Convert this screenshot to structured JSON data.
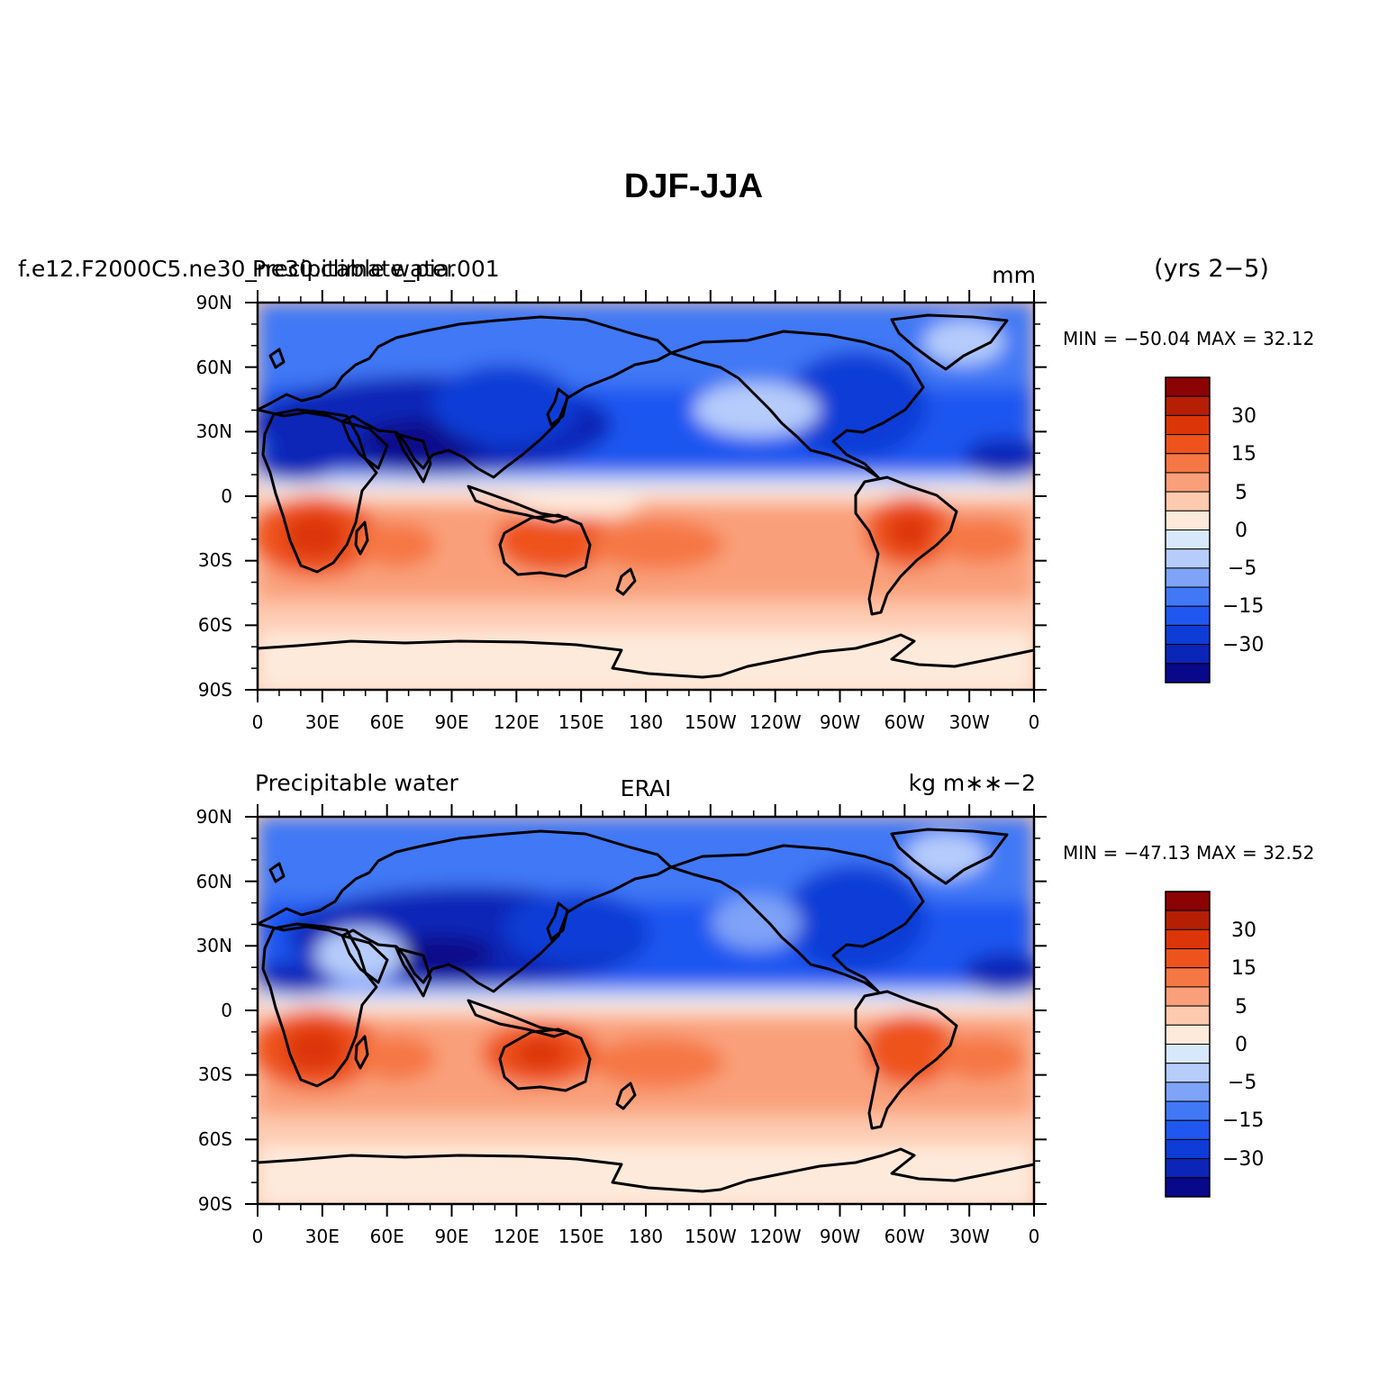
{
  "title": "DJF-JJA",
  "colors": {
    "levels": [
      "#08088a",
      "#0b25b8",
      "#0d3cd6",
      "#1f57f0",
      "#4178f5",
      "#7ea3f7",
      "#b6ccfb",
      "#d8e8fb",
      "#feeadb",
      "#fdcab0",
      "#f9a07a",
      "#f57744",
      "#ee531c",
      "#dc3508",
      "#b71f05",
      "#8b0303"
    ],
    "coast": "#000000"
  },
  "panels": [
    {
      "left_label": "f.e12.F2000C5.ne30_ne30.climate_pia.001",
      "center_label": "Precipitable water",
      "right_label": "mm",
      "extra_label": "(yrs 2−5)",
      "stats": "MIN = −50.04  MAX =  32.12",
      "min": -50.04,
      "max": 32.12
    },
    {
      "left_label": "Precipitable water",
      "center_label": "ERAI",
      "right_label": "kg m∗∗−2",
      "extra_label": "",
      "stats": "MIN = −47.13  MAX =  32.52",
      "min": -47.13,
      "max": 32.52
    }
  ],
  "axes": {
    "lat_ticks": [
      "90N",
      "60N",
      "30N",
      "0",
      "30S",
      "60S",
      "90S"
    ],
    "lon_ticks": [
      "0",
      "30E",
      "60E",
      "90E",
      "120E",
      "150E",
      "180",
      "150W",
      "120W",
      "90W",
      "60W",
      "30W",
      "0"
    ]
  },
  "colorbar": {
    "labels": [
      "30",
      "15",
      "5",
      "0",
      "−5",
      "−15",
      "−30"
    ]
  }
}
